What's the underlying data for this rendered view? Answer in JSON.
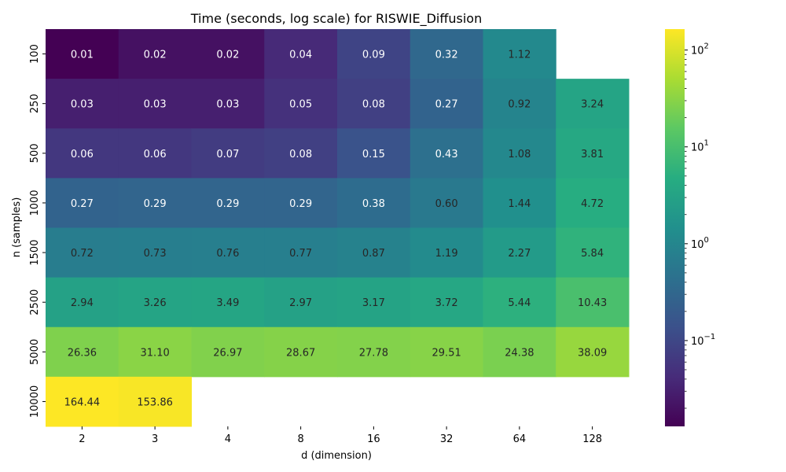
{
  "chart_data": {
    "type": "heatmap",
    "title": "Time (seconds, log scale) for RISWIE_Diffusion",
    "xlabel": "d (dimension)",
    "ylabel": "n (samples)",
    "x_categories": [
      "2",
      "3",
      "4",
      "8",
      "16",
      "32",
      "64",
      "128"
    ],
    "y_categories": [
      "100",
      "250",
      "500",
      "1000",
      "1500",
      "2500",
      "5000",
      "10000"
    ],
    "values": [
      [
        0.01,
        0.02,
        0.02,
        0.04,
        0.09,
        0.32,
        1.12,
        null
      ],
      [
        0.03,
        0.03,
        0.03,
        0.05,
        0.08,
        0.27,
        0.92,
        3.24
      ],
      [
        0.06,
        0.06,
        0.07,
        0.08,
        0.15,
        0.43,
        1.08,
        3.81
      ],
      [
        0.27,
        0.29,
        0.29,
        0.29,
        0.38,
        0.6,
        1.44,
        4.72
      ],
      [
        0.72,
        0.73,
        0.76,
        0.77,
        0.87,
        1.19,
        2.27,
        5.84
      ],
      [
        2.94,
        3.26,
        3.49,
        2.97,
        3.17,
        3.72,
        5.44,
        10.43
      ],
      [
        26.36,
        31.1,
        26.97,
        28.67,
        27.78,
        29.51,
        24.38,
        38.09
      ],
      [
        164.44,
        153.86,
        null,
        null,
        null,
        null,
        null,
        null
      ]
    ],
    "value_format": "0.00",
    "colormap": "viridis",
    "color_scale": "log",
    "color_range": [
      0.013,
      164.44
    ],
    "colorbar": {
      "major_ticks": [
        {
          "value": 0.1,
          "base": "10",
          "exp": "−1"
        },
        {
          "value": 1,
          "base": "10",
          "exp": "0"
        },
        {
          "value": 10,
          "base": "10",
          "exp": "1"
        },
        {
          "value": 100,
          "base": "10",
          "exp": "2"
        }
      ],
      "minor_ticks": [
        0.02,
        0.03,
        0.04,
        0.05,
        0.06,
        0.07,
        0.08,
        0.09,
        0.2,
        0.3,
        0.4,
        0.5,
        0.6,
        0.7,
        0.8,
        0.9,
        2,
        3,
        4,
        5,
        6,
        7,
        8,
        9,
        20,
        30,
        40,
        50,
        60,
        70,
        80,
        90
      ]
    }
  }
}
